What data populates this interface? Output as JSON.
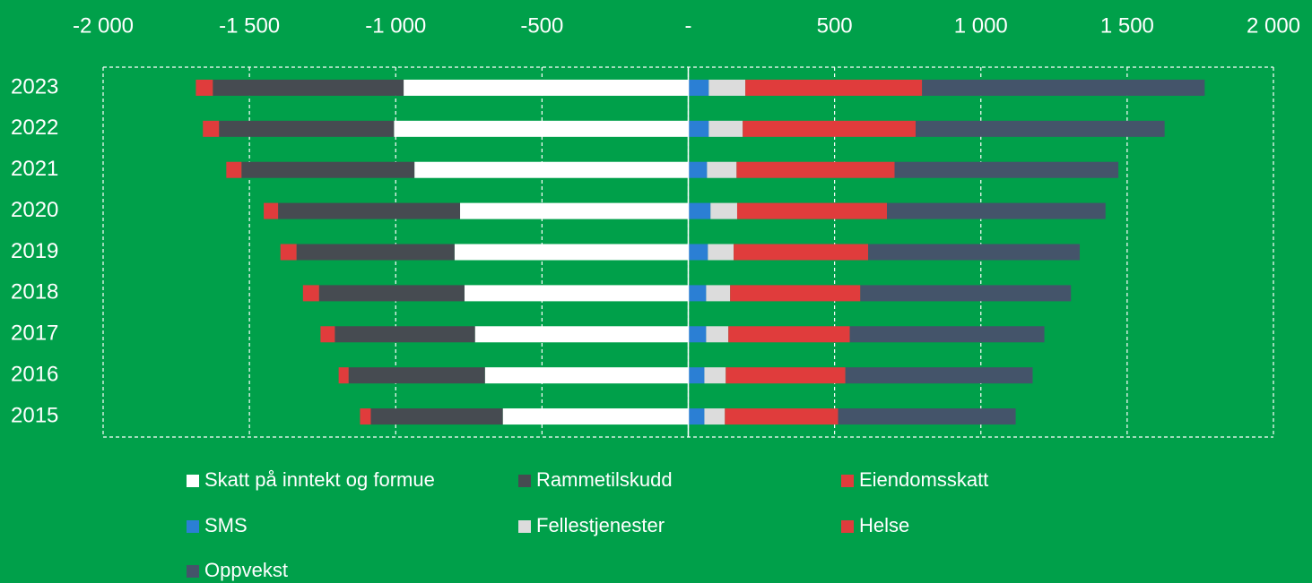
{
  "chart_data": {
    "type": "diverging_stacked_bar",
    "categories": [
      "2023",
      "2022",
      "2021",
      "2020",
      "2019",
      "2018",
      "2017",
      "2016",
      "2015"
    ],
    "series": [
      {
        "name": "Skatt på inntekt og formue",
        "color": "#ffffff",
        "values": [
          -973,
          -1006,
          -936,
          -780,
          -799,
          -765,
          -729,
          -695,
          -634
        ]
      },
      {
        "name": "Rammetilskudd",
        "color": "#464b51",
        "values": [
          -652,
          -598,
          -591,
          -622,
          -540,
          -497,
          -479,
          -466,
          -451
        ]
      },
      {
        "name": "Eiendomsskatt",
        "color": "#e03c3c",
        "values": [
          -58,
          -55,
          -52,
          -49,
          -55,
          -55,
          -49,
          -34,
          -37
        ]
      },
      {
        "name": "SMS",
        "color": "#2b7fd4",
        "values": [
          70,
          70,
          64,
          76,
          67,
          61,
          61,
          55,
          55
        ]
      },
      {
        "name": "Fellestjenester",
        "color": "#dcdcdc",
        "values": [
          125,
          116,
          101,
          91,
          88,
          82,
          76,
          73,
          70
        ]
      },
      {
        "name": "Helse",
        "color": "#e03c3c",
        "values": [
          604,
          591,
          540,
          512,
          460,
          445,
          415,
          409,
          387
        ]
      },
      {
        "name": "Oppvekst",
        "color": "#44546a",
        "values": [
          966,
          851,
          765,
          747,
          723,
          720,
          665,
          640,
          607
        ]
      }
    ],
    "xlim": [
      -2000,
      2000
    ],
    "xticks": [
      {
        "value": -2000,
        "label": "-2 000"
      },
      {
        "value": -1500,
        "label": "-1 500"
      },
      {
        "value": -1000,
        "label": "-1 000"
      },
      -500,
      {
        "value": 0,
        "label": "-"
      },
      500,
      {
        "value": 1000,
        "label": "1 000"
      },
      {
        "value": 1500,
        "label": "1 500"
      },
      {
        "value": 2000,
        "label": "2 000"
      }
    ],
    "grid": true,
    "legend": "bottom"
  }
}
